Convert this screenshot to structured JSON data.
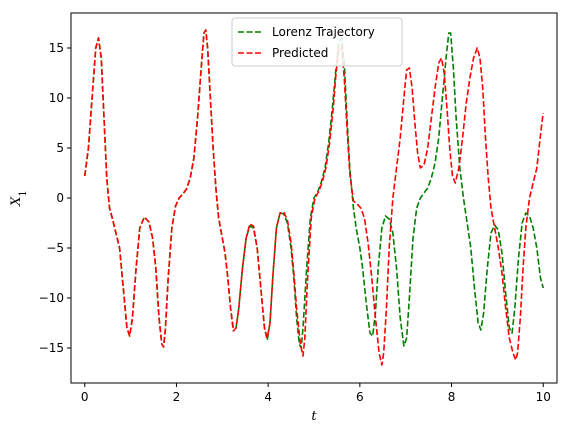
{
  "chart_data": {
    "type": "line",
    "title": "",
    "xlabel": "t",
    "ylabel": "X",
    "ylabel_subscript": "1",
    "xlim": [
      -0.3,
      10.3
    ],
    "ylim": [
      -18.5,
      18.5
    ],
    "xticks": [
      0,
      2,
      4,
      6,
      8,
      10
    ],
    "xtick_labels": [
      "0",
      "2",
      "4",
      "6",
      "8",
      "10"
    ],
    "yticks": [
      -15,
      -10,
      -5,
      0,
      5,
      10,
      15
    ],
    "ytick_labels": [
      "−15",
      "−10",
      "−5",
      "0",
      "5",
      "10",
      "15"
    ],
    "grid": false,
    "legend_position": "upper center",
    "series": [
      {
        "name": "Lorenz Trajectory",
        "color": "#008000",
        "linestyle": "dashed",
        "points": [
          [
            0,
            2.2
          ],
          [
            0.08,
            5
          ],
          [
            0.16,
            10
          ],
          [
            0.24,
            15
          ],
          [
            0.3,
            16
          ],
          [
            0.36,
            14
          ],
          [
            0.42,
            8
          ],
          [
            0.48,
            2
          ],
          [
            0.54,
            -1
          ],
          [
            0.6,
            -2
          ],
          [
            0.68,
            -3.5
          ],
          [
            0.76,
            -5
          ],
          [
            0.84,
            -9
          ],
          [
            0.92,
            -13
          ],
          [
            0.98,
            -13.8
          ],
          [
            1.04,
            -12
          ],
          [
            1.12,
            -7
          ],
          [
            1.2,
            -3
          ],
          [
            1.3,
            -1.9
          ],
          [
            1.4,
            -2.4
          ],
          [
            1.48,
            -4
          ],
          [
            1.55,
            -7
          ],
          [
            1.62,
            -12
          ],
          [
            1.68,
            -14.6
          ],
          [
            1.72,
            -14.9
          ],
          [
            1.76,
            -13
          ],
          [
            1.82,
            -8
          ],
          [
            1.9,
            -3
          ],
          [
            1.98,
            -0.8
          ],
          [
            2.06,
            0
          ],
          [
            2.14,
            0.4
          ],
          [
            2.22,
            0.9
          ],
          [
            2.3,
            2
          ],
          [
            2.38,
            4
          ],
          [
            2.46,
            8
          ],
          [
            2.54,
            13
          ],
          [
            2.6,
            16.5
          ],
          [
            2.64,
            16.8
          ],
          [
            2.68,
            15
          ],
          [
            2.74,
            10
          ],
          [
            2.8,
            5
          ],
          [
            2.86,
            1
          ],
          [
            2.92,
            -2
          ],
          [
            3,
            -4
          ],
          [
            3.06,
            -5.5
          ],
          [
            3.12,
            -8
          ],
          [
            3.18,
            -11
          ],
          [
            3.24,
            -13
          ],
          [
            3.3,
            -13
          ],
          [
            3.36,
            -11
          ],
          [
            3.44,
            -7
          ],
          [
            3.52,
            -4
          ],
          [
            3.6,
            -2.8
          ],
          [
            3.68,
            -3
          ],
          [
            3.76,
            -5
          ],
          [
            3.84,
            -9
          ],
          [
            3.92,
            -13
          ],
          [
            3.98,
            -14.2
          ],
          [
            4.04,
            -12.5
          ],
          [
            4.1,
            -8
          ],
          [
            4.18,
            -3
          ],
          [
            4.26,
            -1.5
          ],
          [
            4.34,
            -1.6
          ],
          [
            4.42,
            -2.5
          ],
          [
            4.5,
            -5
          ],
          [
            4.56,
            -8
          ],
          [
            4.62,
            -12
          ],
          [
            4.68,
            -14.6
          ],
          [
            4.72,
            -15
          ],
          [
            4.76,
            -13
          ],
          [
            4.84,
            -7
          ],
          [
            4.92,
            -2
          ],
          [
            5,
            0
          ],
          [
            5.08,
            0.6
          ],
          [
            5.16,
            1.6
          ],
          [
            5.24,
            3
          ],
          [
            5.32,
            5.5
          ],
          [
            5.4,
            9
          ],
          [
            5.48,
            13
          ],
          [
            5.54,
            15.5
          ],
          [
            5.6,
            16
          ],
          [
            5.66,
            13.5
          ],
          [
            5.72,
            8
          ],
          [
            5.78,
            3
          ],
          [
            5.86,
            -1
          ],
          [
            5.92,
            -3
          ],
          [
            6,
            -5
          ],
          [
            6.06,
            -7
          ],
          [
            6.14,
            -10.5
          ],
          [
            6.22,
            -13.5
          ],
          [
            6.28,
            -13.8
          ],
          [
            6.34,
            -11.5
          ],
          [
            6.4,
            -7
          ],
          [
            6.48,
            -3
          ],
          [
            6.56,
            -1.8
          ],
          [
            6.64,
            -2.1
          ],
          [
            6.72,
            -3.5
          ],
          [
            6.8,
            -7
          ],
          [
            6.88,
            -12
          ],
          [
            6.96,
            -14.8
          ],
          [
            7.02,
            -14
          ],
          [
            7.08,
            -10
          ],
          [
            7.16,
            -4
          ],
          [
            7.24,
            -1
          ],
          [
            7.32,
            0
          ],
          [
            7.4,
            0.5
          ],
          [
            7.48,
            1
          ],
          [
            7.56,
            2
          ],
          [
            7.64,
            3.5
          ],
          [
            7.72,
            6
          ],
          [
            7.8,
            10
          ],
          [
            7.88,
            14
          ],
          [
            7.94,
            16.5
          ],
          [
            7.98,
            16.5
          ],
          [
            8.04,
            13
          ],
          [
            8.1,
            8
          ],
          [
            8.18,
            3
          ],
          [
            8.26,
            0
          ],
          [
            8.34,
            -2.5
          ],
          [
            8.42,
            -5
          ],
          [
            8.5,
            -9
          ],
          [
            8.58,
            -12.5
          ],
          [
            8.64,
            -13.2
          ],
          [
            8.7,
            -11.5
          ],
          [
            8.78,
            -7
          ],
          [
            8.86,
            -3.5
          ],
          [
            8.94,
            -2.7
          ],
          [
            9.02,
            -3.2
          ],
          [
            9.1,
            -5.5
          ],
          [
            9.18,
            -9.5
          ],
          [
            9.26,
            -13
          ],
          [
            9.32,
            -13.5
          ],
          [
            9.38,
            -11
          ],
          [
            9.46,
            -6
          ],
          [
            9.54,
            -2.5
          ],
          [
            9.62,
            -1.5
          ],
          [
            9.7,
            -1.8
          ],
          [
            9.78,
            -3
          ],
          [
            9.86,
            -5
          ],
          [
            9.94,
            -8
          ],
          [
            10,
            -9
          ]
        ]
      },
      {
        "name": "Predicted",
        "color": "#ff0000",
        "linestyle": "dashed",
        "points": [
          [
            0,
            2.2
          ],
          [
            0.08,
            5
          ],
          [
            0.16,
            10
          ],
          [
            0.24,
            15
          ],
          [
            0.3,
            16
          ],
          [
            0.36,
            14
          ],
          [
            0.42,
            8
          ],
          [
            0.48,
            2
          ],
          [
            0.54,
            -1
          ],
          [
            0.6,
            -2
          ],
          [
            0.68,
            -3.5
          ],
          [
            0.76,
            -5
          ],
          [
            0.84,
            -9
          ],
          [
            0.92,
            -13
          ],
          [
            0.98,
            -13.8
          ],
          [
            1.04,
            -12
          ],
          [
            1.12,
            -7
          ],
          [
            1.2,
            -3
          ],
          [
            1.3,
            -1.9
          ],
          [
            1.4,
            -2.4
          ],
          [
            1.48,
            -4
          ],
          [
            1.55,
            -7
          ],
          [
            1.62,
            -12
          ],
          [
            1.68,
            -14.6
          ],
          [
            1.72,
            -14.9
          ],
          [
            1.76,
            -13
          ],
          [
            1.82,
            -8
          ],
          [
            1.9,
            -3
          ],
          [
            1.98,
            -0.8
          ],
          [
            2.06,
            0
          ],
          [
            2.14,
            0.4
          ],
          [
            2.22,
            0.9
          ],
          [
            2.3,
            2
          ],
          [
            2.38,
            4
          ],
          [
            2.46,
            8
          ],
          [
            2.54,
            13
          ],
          [
            2.6,
            16.5
          ],
          [
            2.64,
            16.8
          ],
          [
            2.68,
            15
          ],
          [
            2.74,
            10
          ],
          [
            2.8,
            5
          ],
          [
            2.86,
            1
          ],
          [
            2.92,
            -2
          ],
          [
            3,
            -4
          ],
          [
            3.06,
            -5.5
          ],
          [
            3.12,
            -8
          ],
          [
            3.18,
            -11
          ],
          [
            3.24,
            -13.3
          ],
          [
            3.3,
            -13
          ],
          [
            3.36,
            -11
          ],
          [
            3.44,
            -7
          ],
          [
            3.52,
            -4
          ],
          [
            3.6,
            -2.6
          ],
          [
            3.68,
            -2.8
          ],
          [
            3.76,
            -5
          ],
          [
            3.84,
            -9
          ],
          [
            3.92,
            -13
          ],
          [
            3.98,
            -14
          ],
          [
            4.04,
            -12.5
          ],
          [
            4.1,
            -8
          ],
          [
            4.18,
            -3
          ],
          [
            4.26,
            -1.5
          ],
          [
            4.34,
            -1.4
          ],
          [
            4.42,
            -2.2
          ],
          [
            4.5,
            -4.5
          ],
          [
            4.56,
            -7.5
          ],
          [
            4.62,
            -11
          ],
          [
            4.7,
            -14.5
          ],
          [
            4.76,
            -15.8
          ],
          [
            4.8,
            -14
          ],
          [
            4.86,
            -8
          ],
          [
            4.94,
            -2
          ],
          [
            5.02,
            0
          ],
          [
            5.1,
            0.6
          ],
          [
            5.18,
            1.6
          ],
          [
            5.26,
            3
          ],
          [
            5.34,
            5.5
          ],
          [
            5.42,
            9
          ],
          [
            5.48,
            12.5
          ],
          [
            5.54,
            14.8
          ],
          [
            5.6,
            15.2
          ],
          [
            5.66,
            12
          ],
          [
            5.72,
            7
          ],
          [
            5.78,
            2.5
          ],
          [
            5.86,
            -0.3
          ],
          [
            5.94,
            -0.6
          ],
          [
            6.02,
            -1
          ],
          [
            6.1,
            -2
          ],
          [
            6.18,
            -4.5
          ],
          [
            6.26,
            -8
          ],
          [
            6.34,
            -12
          ],
          [
            6.42,
            -15.5
          ],
          [
            6.48,
            -16.7
          ],
          [
            6.52,
            -15.5
          ],
          [
            6.58,
            -11
          ],
          [
            6.64,
            -5
          ],
          [
            6.72,
            0
          ],
          [
            6.8,
            3
          ],
          [
            6.88,
            6
          ],
          [
            6.96,
            10
          ],
          [
            7.02,
            12.8
          ],
          [
            7.08,
            13
          ],
          [
            7.14,
            11
          ],
          [
            7.2,
            7.5
          ],
          [
            7.26,
            4.5
          ],
          [
            7.32,
            3
          ],
          [
            7.4,
            3.3
          ],
          [
            7.48,
            5
          ],
          [
            7.56,
            8
          ],
          [
            7.64,
            11
          ],
          [
            7.72,
            13.5
          ],
          [
            7.78,
            14
          ],
          [
            7.84,
            12.5
          ],
          [
            7.9,
            9
          ],
          [
            7.96,
            5
          ],
          [
            8.02,
            2.2
          ],
          [
            8.08,
            1.5
          ],
          [
            8.16,
            3
          ],
          [
            8.24,
            6
          ],
          [
            8.32,
            9.5
          ],
          [
            8.4,
            12
          ],
          [
            8.48,
            14
          ],
          [
            8.56,
            15
          ],
          [
            8.62,
            14
          ],
          [
            8.68,
            11
          ],
          [
            8.74,
            6
          ],
          [
            8.8,
            2
          ],
          [
            8.86,
            -1
          ],
          [
            8.94,
            -3
          ],
          [
            9.02,
            -5
          ],
          [
            9.1,
            -7.5
          ],
          [
            9.18,
            -11
          ],
          [
            9.26,
            -14
          ],
          [
            9.34,
            -15.5
          ],
          [
            9.4,
            -16.2
          ],
          [
            9.44,
            -15.5
          ],
          [
            9.5,
            -12
          ],
          [
            9.56,
            -7
          ],
          [
            9.62,
            -3
          ],
          [
            9.7,
            0
          ],
          [
            9.78,
            1.5
          ],
          [
            9.86,
            3
          ],
          [
            9.92,
            5.5
          ],
          [
            9.97,
            7.5
          ],
          [
            10,
            8.5
          ]
        ]
      }
    ]
  }
}
